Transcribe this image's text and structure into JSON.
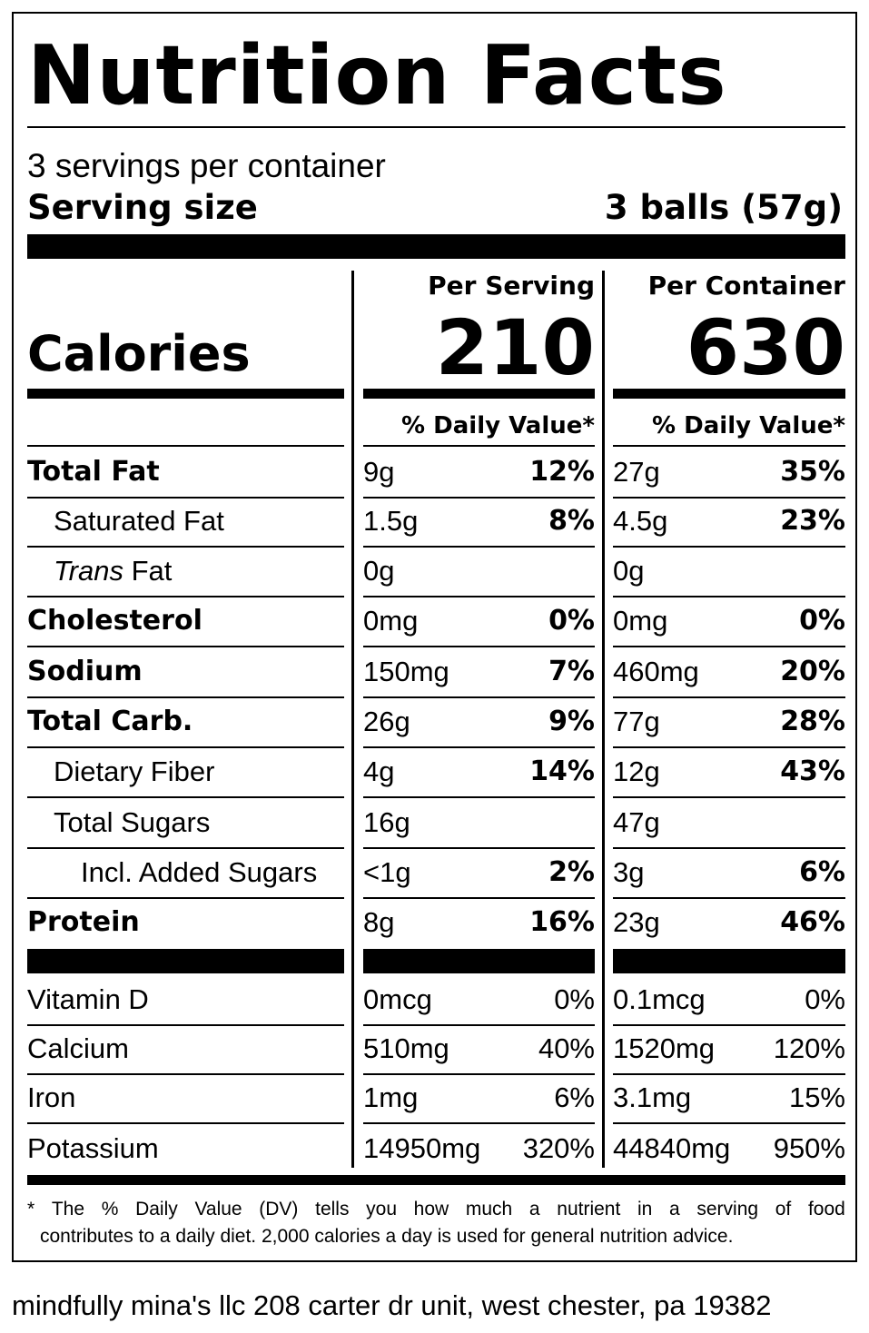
{
  "title": "Nutrition Facts",
  "servings_per_container": "3 servings per container",
  "serving_size": {
    "label": "Serving size",
    "value": "3 balls (57g)"
  },
  "calories": {
    "label": "Calories",
    "per_serving_header": "Per Serving",
    "per_container_header": "Per Container",
    "per_serving": "210",
    "per_container": "630"
  },
  "daily_value_header": "% Daily Value*",
  "nutrients": [
    {
      "name": "Total Fat",
      "style": "bold",
      "serving_amount": "9g",
      "serving_dv": "12%",
      "container_amount": "27g",
      "container_dv": "35%"
    },
    {
      "name": "Saturated Fat",
      "style": "indent1",
      "serving_amount": "1.5g",
      "serving_dv": "8%",
      "container_amount": "4.5g",
      "container_dv": "23%"
    },
    {
      "name_italic": "Trans",
      "name": " Fat",
      "style": "indent1",
      "serving_amount": "0g",
      "serving_dv": "",
      "container_amount": "0g",
      "container_dv": ""
    },
    {
      "name": "Cholesterol",
      "style": "bold",
      "serving_amount": "0mg",
      "serving_dv": "0%",
      "container_amount": "0mg",
      "container_dv": "0%"
    },
    {
      "name": "Sodium",
      "style": "bold",
      "serving_amount": "150mg",
      "serving_dv": "7%",
      "container_amount": "460mg",
      "container_dv": "20%"
    },
    {
      "name": "Total Carb.",
      "style": "bold",
      "serving_amount": "26g",
      "serving_dv": "9%",
      "container_amount": "77g",
      "container_dv": "28%"
    },
    {
      "name": "Dietary Fiber",
      "style": "indent1",
      "serving_amount": "4g",
      "serving_dv": "14%",
      "container_amount": "12g",
      "container_dv": "43%"
    },
    {
      "name": "Total Sugars",
      "style": "indent1",
      "serving_amount": "16g",
      "serving_dv": "",
      "container_amount": "47g",
      "container_dv": ""
    },
    {
      "name": "Incl. Added Sugars",
      "style": "indent2",
      "serving_amount": "<1g",
      "serving_dv": "2%",
      "container_amount": "3g",
      "container_dv": "6%"
    },
    {
      "name": "Protein",
      "style": "bold",
      "serving_amount": "8g",
      "serving_dv": "16%",
      "container_amount": "23g",
      "container_dv": "46%"
    }
  ],
  "vitamins": [
    {
      "name": "Vitamin D",
      "serving_amount": "0mcg",
      "serving_dv": "0%",
      "container_amount": "0.1mcg",
      "container_dv": "0%"
    },
    {
      "name": "Calcium",
      "serving_amount": "510mg",
      "serving_dv": "40%",
      "container_amount": "1520mg",
      "container_dv": "120%"
    },
    {
      "name": "Iron",
      "serving_amount": "1mg",
      "serving_dv": "6%",
      "container_amount": "3.1mg",
      "container_dv": "15%"
    },
    {
      "name": "Potassium",
      "serving_amount": "14950mg",
      "serving_dv": "320%",
      "container_amount": "44840mg",
      "container_dv": "950%"
    }
  ],
  "footnote": {
    "line1_words": [
      "*",
      "The",
      "%",
      "Daily",
      "Value",
      "(DV)",
      "tells",
      "you",
      "how",
      "much",
      "a",
      "nutrient",
      "in",
      "a",
      "serving",
      "of",
      "food"
    ],
    "line2": "contributes to a daily diet. 2,000 calories a day is used for general nutrition advice."
  },
  "address": "mindfully mina's llc 208 carter dr unit, west chester, pa 19382"
}
